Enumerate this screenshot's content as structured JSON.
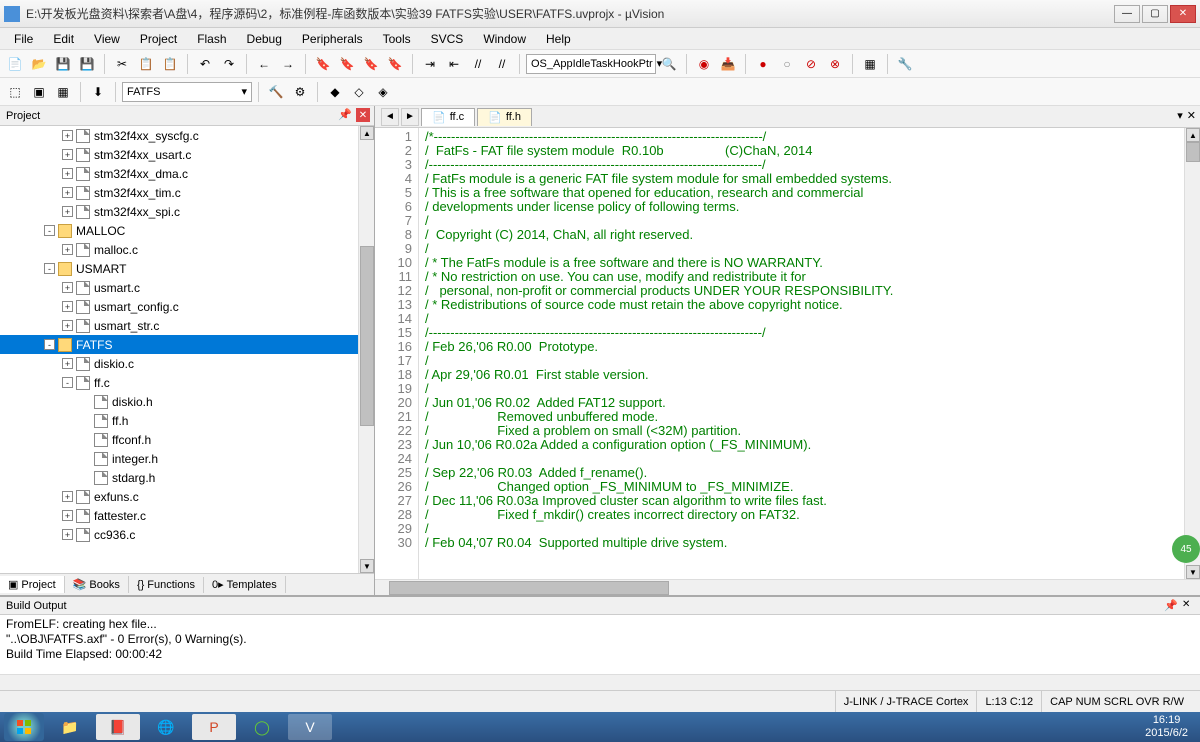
{
  "window": {
    "title": "E:\\开发板光盘资料\\探索者\\A盘\\4，程序源码\\2，标准例程-库函数版本\\实验39 FATFS实验\\USER\\FATFS.uvprojx - µVision"
  },
  "menu": [
    "File",
    "Edit",
    "View",
    "Project",
    "Flash",
    "Debug",
    "Peripherals",
    "Tools",
    "SVCS",
    "Window",
    "Help"
  ],
  "toolbar2": {
    "combo": "FATFS",
    "combo_right": "OS_AppIdleTaskHookPtr"
  },
  "project_pane": {
    "title": "Project",
    "items": [
      {
        "indent": 3,
        "exp": "+",
        "icon": "file",
        "label": "stm32f4xx_syscfg.c"
      },
      {
        "indent": 3,
        "exp": "+",
        "icon": "file",
        "label": "stm32f4xx_usart.c"
      },
      {
        "indent": 3,
        "exp": "+",
        "icon": "file",
        "label": "stm32f4xx_dma.c"
      },
      {
        "indent": 3,
        "exp": "+",
        "icon": "file",
        "label": "stm32f4xx_tim.c"
      },
      {
        "indent": 3,
        "exp": "+",
        "icon": "file",
        "label": "stm32f4xx_spi.c"
      },
      {
        "indent": 2,
        "exp": "-",
        "icon": "folder",
        "label": "MALLOC"
      },
      {
        "indent": 3,
        "exp": "+",
        "icon": "file",
        "label": "malloc.c"
      },
      {
        "indent": 2,
        "exp": "-",
        "icon": "folder",
        "label": "USMART"
      },
      {
        "indent": 3,
        "exp": "+",
        "icon": "file",
        "label": "usmart.c"
      },
      {
        "indent": 3,
        "exp": "+",
        "icon": "file",
        "label": "usmart_config.c"
      },
      {
        "indent": 3,
        "exp": "+",
        "icon": "file",
        "label": "usmart_str.c"
      },
      {
        "indent": 2,
        "exp": "-",
        "icon": "folder",
        "label": "FATFS",
        "selected": true
      },
      {
        "indent": 3,
        "exp": "+",
        "icon": "file",
        "label": "diskio.c"
      },
      {
        "indent": 3,
        "exp": "-",
        "icon": "file",
        "label": "ff.c"
      },
      {
        "indent": 4,
        "exp": "",
        "icon": "file",
        "label": "diskio.h"
      },
      {
        "indent": 4,
        "exp": "",
        "icon": "file",
        "label": "ff.h"
      },
      {
        "indent": 4,
        "exp": "",
        "icon": "file",
        "label": "ffconf.h"
      },
      {
        "indent": 4,
        "exp": "",
        "icon": "file",
        "label": "integer.h"
      },
      {
        "indent": 4,
        "exp": "",
        "icon": "file",
        "label": "stdarg.h"
      },
      {
        "indent": 3,
        "exp": "+",
        "icon": "file",
        "label": "exfuns.c"
      },
      {
        "indent": 3,
        "exp": "+",
        "icon": "file",
        "label": "fattester.c"
      },
      {
        "indent": 3,
        "exp": "+",
        "icon": "file",
        "label": "cc936.c"
      }
    ],
    "tabs": [
      "Project",
      "Books",
      "Functions",
      "Templates"
    ]
  },
  "editor": {
    "tabs": [
      {
        "label": "ff.c",
        "active": true
      },
      {
        "label": "ff.h",
        "active": false
      }
    ],
    "first_line": 1,
    "lines": [
      "/*----------------------------------------------------------------------------/",
      "/  FatFs - FAT file system module  R0.10b                 (C)ChaN, 2014",
      "/-----------------------------------------------------------------------------/",
      "/ FatFs module is a generic FAT file system module for small embedded systems.",
      "/ This is a free software that opened for education, research and commercial",
      "/ developments under license policy of following terms.",
      "/",
      "/  Copyright (C) 2014, ChaN, all right reserved.",
      "/",
      "/ * The FatFs module is a free software and there is NO WARRANTY.",
      "/ * No restriction on use. You can use, modify and redistribute it for",
      "/   personal, non-profit or commercial products UNDER YOUR RESPONSIBILITY.",
      "/ * Redistributions of source code must retain the above copyright notice.",
      "/",
      "/-----------------------------------------------------------------------------/",
      "/ Feb 26,'06 R0.00  Prototype.",
      "/",
      "/ Apr 29,'06 R0.01  First stable version.",
      "/",
      "/ Jun 01,'06 R0.02  Added FAT12 support.",
      "/                   Removed unbuffered mode.",
      "/                   Fixed a problem on small (<32M) partition.",
      "/ Jun 10,'06 R0.02a Added a configuration option (_FS_MINIMUM).",
      "/",
      "/ Sep 22,'06 R0.03  Added f_rename().",
      "/                   Changed option _FS_MINIMUM to _FS_MINIMIZE.",
      "/ Dec 11,'06 R0.03a Improved cluster scan algorithm to write files fast.",
      "/                   Fixed f_mkdir() creates incorrect directory on FAT32.",
      "/",
      "/ Feb 04,'07 R0.04  Supported multiple drive system."
    ]
  },
  "build": {
    "title": "Build Output",
    "lines": [
      "FromELF: creating hex file...",
      "\"..\\OBJ\\FATFS.axf\" - 0 Error(s), 0 Warning(s).",
      "Build Time Elapsed:  00:00:42"
    ]
  },
  "status": {
    "debug": "J-LINK / J-TRACE Cortex",
    "pos": "L:13 C:12",
    "caps": "CAP  NUM  SCRL  OVR  R/W"
  },
  "taskbar": {
    "time": "16:19",
    "date": "2015/6/2"
  },
  "colors": {
    "selection_bg": "#0078d7",
    "comment": "#008000",
    "folder": "#ffd97a",
    "tab_bg": "#fff8dc"
  }
}
